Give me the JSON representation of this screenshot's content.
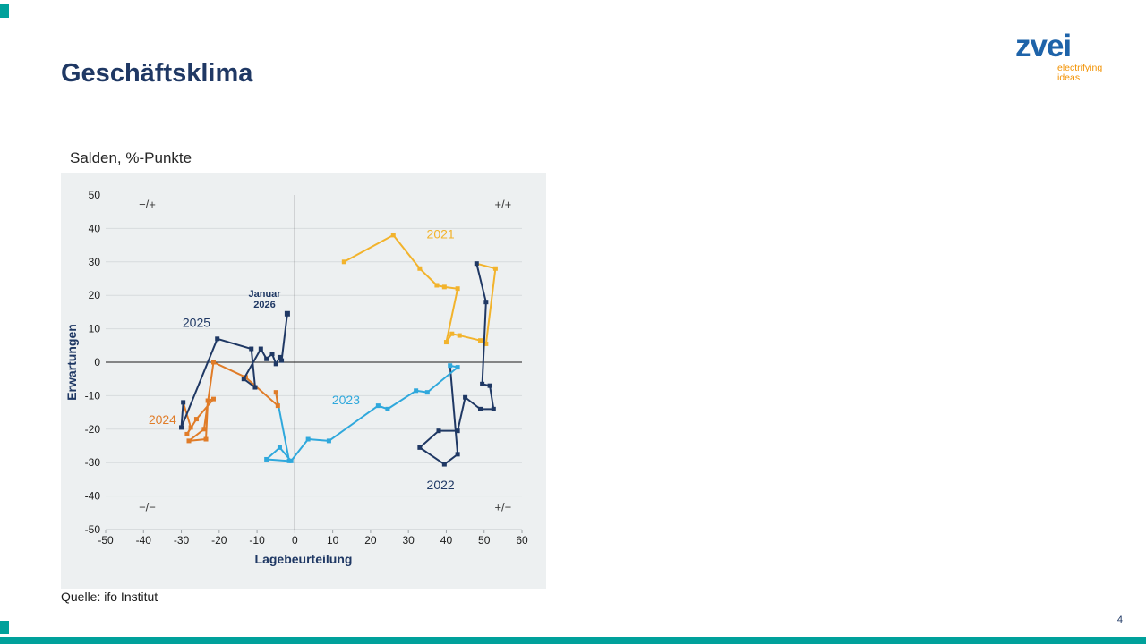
{
  "slide": {
    "title": "Geschäftsklima",
    "subtitle": "Salden, %-Punkte",
    "source": "Quelle: ifo Institut",
    "page_number": "4"
  },
  "logo": {
    "wordmark": "zvei",
    "tagline": [
      "electrifying",
      "ideas"
    ]
  },
  "colors": {
    "accent_teal": "#00A19B",
    "title_navy": "#1F3864",
    "logo_blue": "#1E63A9",
    "logo_orange": "#F29100",
    "panel_background": "#EDF0F1",
    "series_2021": "#F2B32C",
    "series_2022": "#1F3864",
    "series_2023": "#2FA8DC",
    "series_2024": "#E07C28",
    "series_2025": "#1F3864"
  },
  "chart_data": {
    "type": "scatter",
    "title": "Salden, %-Punkte",
    "xlabel": "Lagebeurteilung",
    "ylabel": "Erwartungen",
    "xlim": [
      -50,
      60
    ],
    "ylim": [
      -50,
      50
    ],
    "x_ticks": [
      -50,
      -40,
      -30,
      -20,
      -10,
      0,
      10,
      20,
      30,
      40,
      50,
      60
    ],
    "y_ticks": [
      50,
      40,
      30,
      20,
      10,
      0,
      -10,
      -20,
      -30,
      -40,
      -50
    ],
    "grid": "horizontal",
    "legend": "inline-labels",
    "quadrants": {
      "top_left": "−/+",
      "top_right": "+/+",
      "bottom_left": "−/−",
      "bottom_right": "+/−"
    },
    "series": [
      {
        "name": "2021",
        "color": "#F2B32C",
        "label": {
          "text": "2021",
          "x": 38.5,
          "y": 37
        },
        "points": [
          [
            13,
            30
          ],
          [
            26,
            38
          ],
          [
            33,
            28
          ],
          [
            37.5,
            23
          ],
          [
            39.5,
            22.5
          ],
          [
            43,
            22
          ],
          [
            40,
            6
          ],
          [
            41.5,
            8.5
          ],
          [
            43.5,
            8
          ],
          [
            49,
            6.5
          ],
          [
            50.5,
            5.5
          ],
          [
            53,
            28
          ]
        ]
      },
      {
        "name": "2022",
        "color": "#1F3864",
        "label": {
          "text": "2022",
          "x": 38.5,
          "y": -38
        },
        "points": [
          [
            48,
            29.5
          ],
          [
            50.5,
            18
          ],
          [
            49.5,
            -6.5
          ],
          [
            51.5,
            -7
          ],
          [
            52.5,
            -14
          ],
          [
            49,
            -14
          ],
          [
            45,
            -10.5
          ],
          [
            43,
            -20.5
          ],
          [
            38,
            -20.5
          ],
          [
            33,
            -25.5
          ],
          [
            39.5,
            -30.5
          ],
          [
            43,
            -27.5
          ]
        ]
      },
      {
        "name": "2023",
        "color": "#2FA8DC",
        "label": {
          "text": "2023",
          "x": 13.5,
          "y": -12.5
        },
        "points": [
          [
            41,
            -1
          ],
          [
            43,
            -1.5
          ],
          [
            35,
            -9
          ],
          [
            32,
            -8.5
          ],
          [
            24.5,
            -14
          ],
          [
            22,
            -13
          ],
          [
            9,
            -23.5
          ],
          [
            3.5,
            -23
          ],
          [
            -1,
            -29.5
          ],
          [
            -4,
            -25.5
          ],
          [
            -7.5,
            -29
          ],
          [
            -1.5,
            -29.5
          ]
        ]
      },
      {
        "name": "2024",
        "color": "#E07C28",
        "label": {
          "text": "2024",
          "x": -35,
          "y": -18.5
        },
        "points": [
          [
            -5,
            -9
          ],
          [
            -4.5,
            -13
          ],
          [
            -13,
            -4.5
          ],
          [
            -21.5,
            0
          ],
          [
            -24,
            -20
          ],
          [
            -28,
            -23.5
          ],
          [
            -23.5,
            -23
          ],
          [
            -23,
            -11.5
          ],
          [
            -21.5,
            -11
          ],
          [
            -26,
            -17
          ],
          [
            -28.5,
            -21.5
          ],
          [
            -27.5,
            -19.5
          ]
        ]
      },
      {
        "name": "2025",
        "color": "#1F3864",
        "label": {
          "text": "2025",
          "x": -26,
          "y": 10.5
        },
        "points": [
          [
            -29.5,
            -12
          ],
          [
            -30,
            -19.5
          ],
          [
            -20.5,
            7
          ],
          [
            -11.5,
            4
          ],
          [
            -10.5,
            -7.5
          ],
          [
            -13.5,
            -5
          ],
          [
            -9,
            4
          ],
          [
            -7.5,
            1
          ],
          [
            -6,
            2.5
          ],
          [
            -5,
            -0.5
          ],
          [
            -4,
            1.5
          ],
          [
            -3.5,
            0.5
          ]
        ]
      }
    ],
    "annotation": {
      "text_lines": [
        "Januar",
        "2026"
      ],
      "x": -2,
      "y": 14.5,
      "label_x": -8,
      "label_y": 19.5,
      "color": "#1F3864"
    }
  }
}
